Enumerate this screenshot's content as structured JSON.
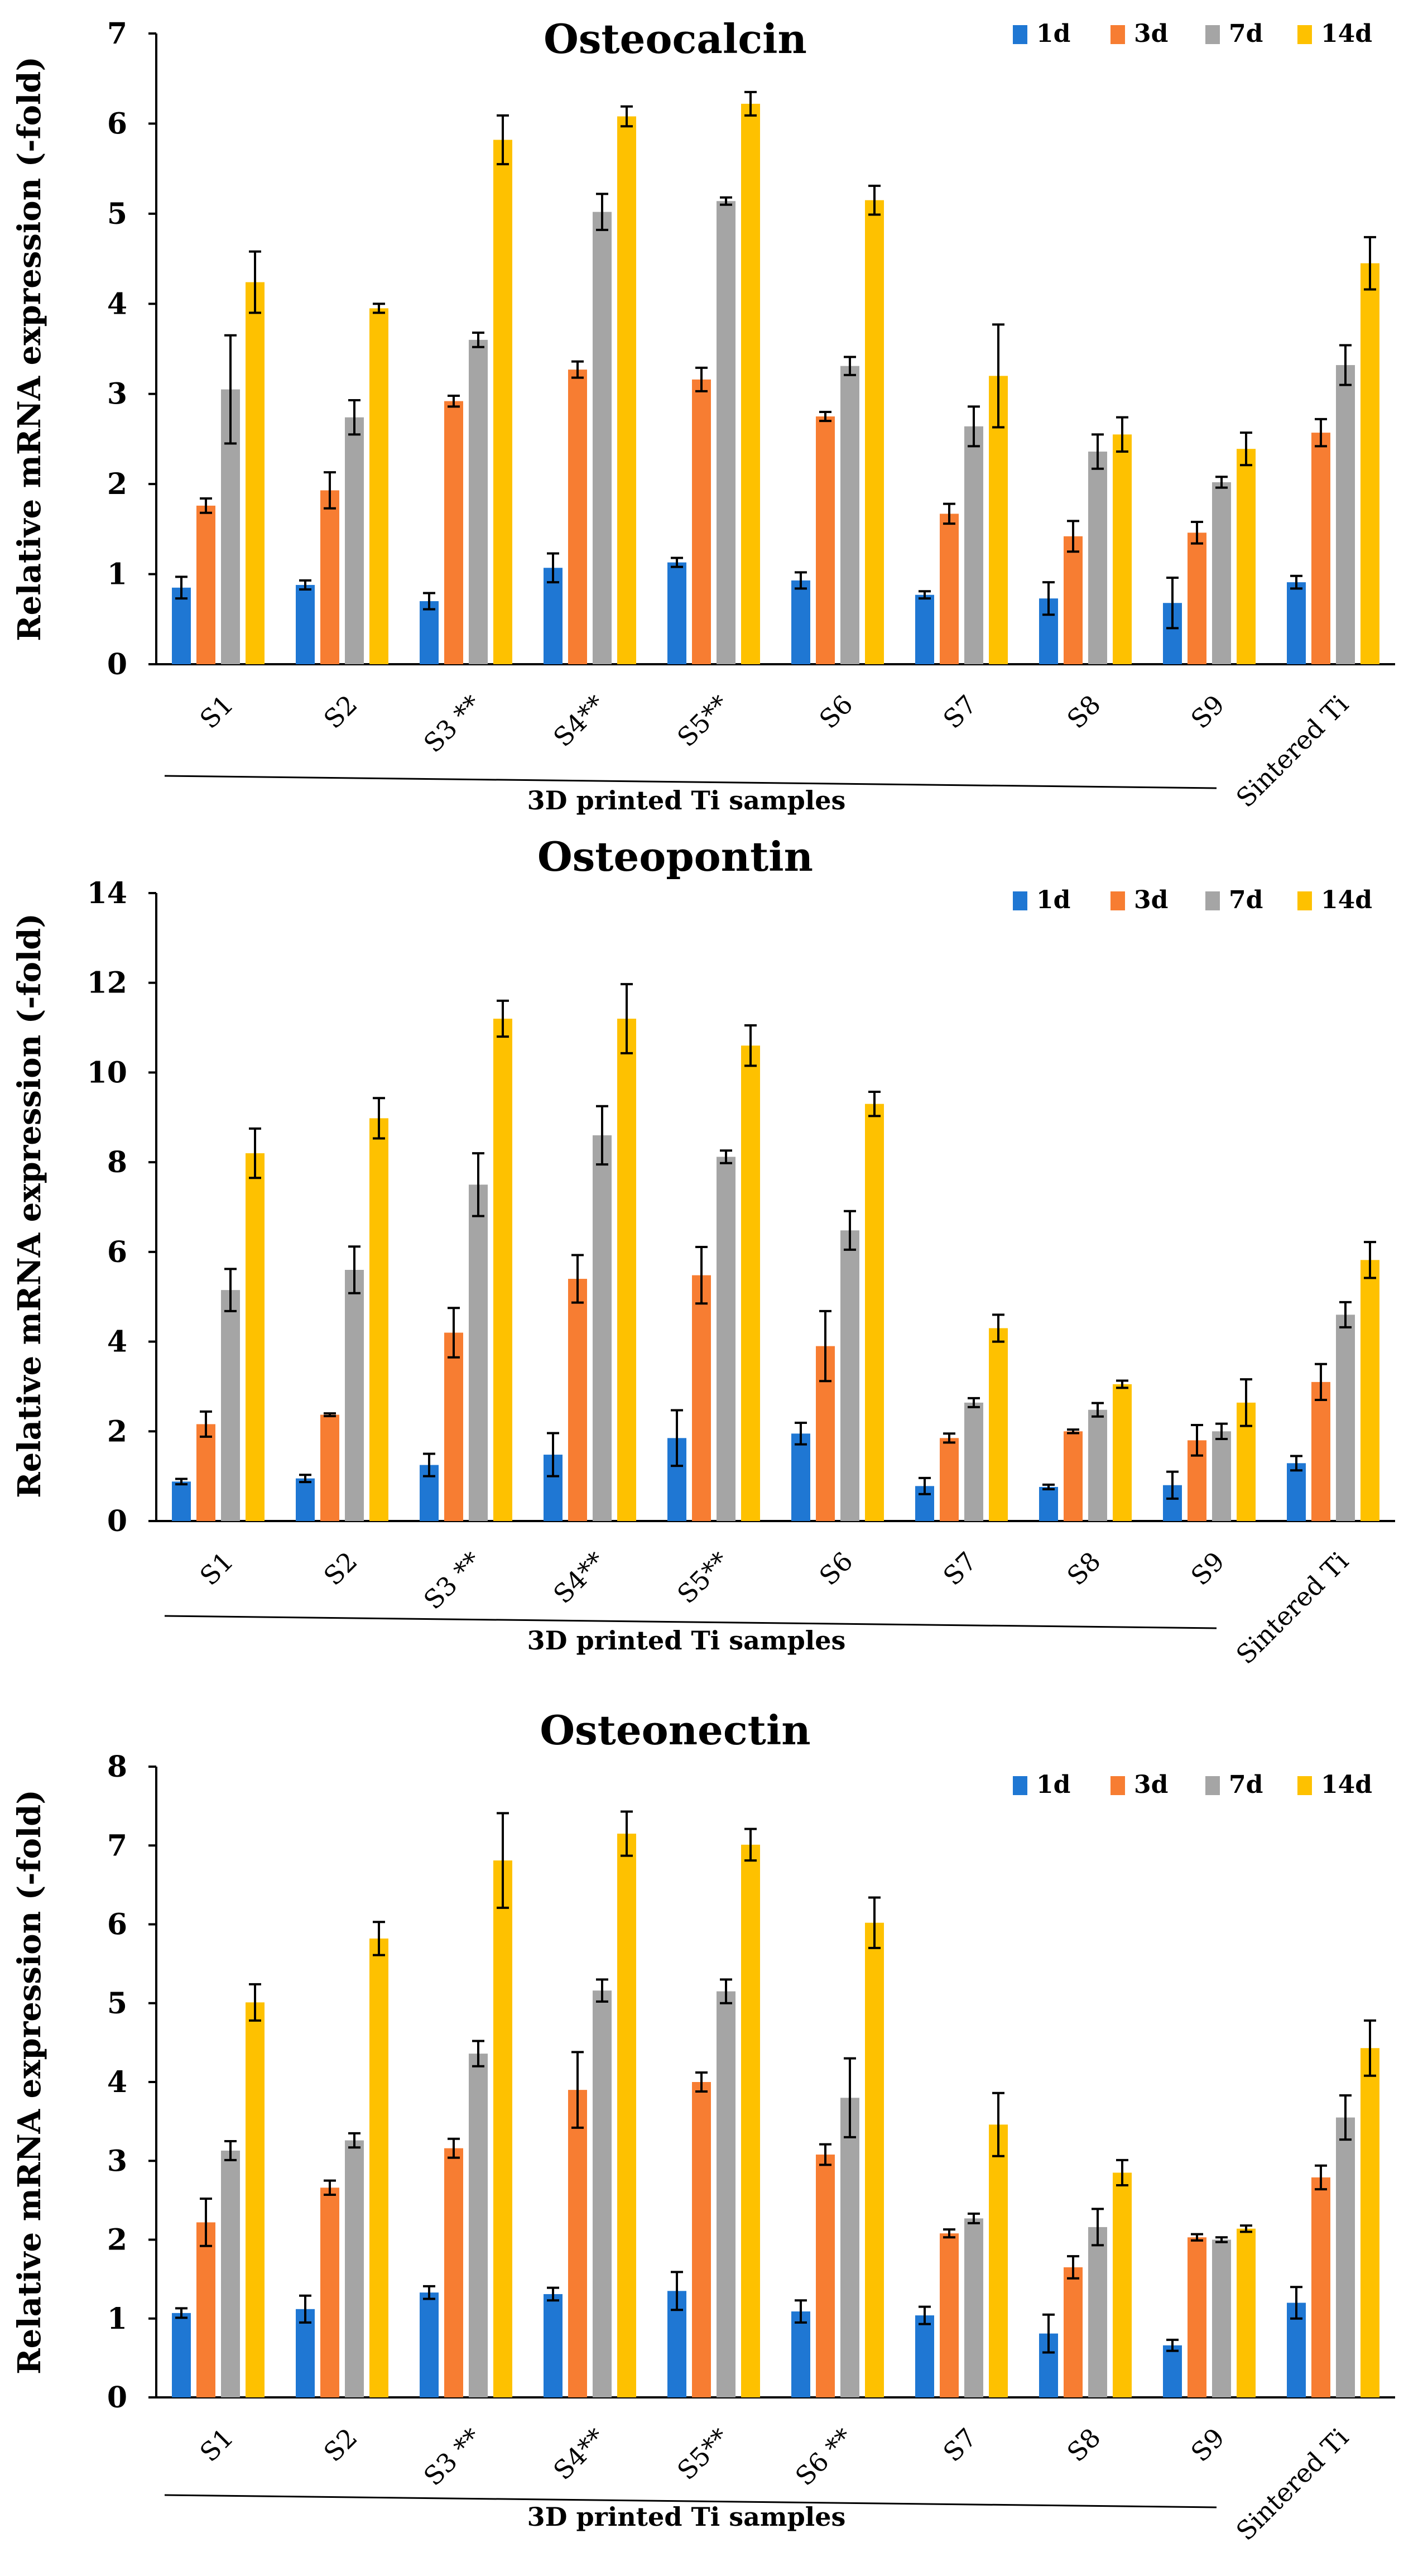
{
  "chart_data": [
    {
      "type": "bar",
      "title": "Osteocalcin",
      "ylabel": "Relative mRNA expression (-fold)",
      "xlabel": "",
      "group_label": "3D printed Ti samples",
      "ylim": [
        0,
        7
      ],
      "yticks": [
        0,
        1,
        2,
        3,
        4,
        5,
        6,
        7
      ],
      "categories": [
        "S1",
        "S2",
        "S3 **",
        "S4**",
        "S5**",
        "S6",
        "S7",
        "S8",
        "S9",
        "Sintered Ti"
      ],
      "legend_position": "top-right",
      "series": [
        {
          "name": "1d",
          "color": "#1f77d3",
          "values": [
            0.85,
            0.88,
            0.7,
            1.07,
            1.13,
            0.93,
            0.77,
            0.73,
            0.68,
            0.91
          ],
          "errors": [
            0.12,
            0.05,
            0.09,
            0.16,
            0.05,
            0.09,
            0.04,
            0.18,
            0.28,
            0.07
          ]
        },
        {
          "name": "3d",
          "color": "#f77d32",
          "values": [
            1.76,
            1.93,
            2.92,
            3.27,
            3.16,
            2.75,
            1.67,
            1.42,
            1.46,
            2.57
          ],
          "errors": [
            0.08,
            0.2,
            0.06,
            0.09,
            0.13,
            0.05,
            0.11,
            0.17,
            0.12,
            0.15
          ]
        },
        {
          "name": "7d",
          "color": "#a5a5a5",
          "values": [
            3.05,
            2.74,
            3.6,
            5.02,
            5.14,
            3.31,
            2.64,
            2.36,
            2.02,
            3.32
          ],
          "errors": [
            0.6,
            0.19,
            0.08,
            0.2,
            0.04,
            0.1,
            0.22,
            0.19,
            0.06,
            0.22
          ]
        },
        {
          "name": "14d",
          "color": "#fec100",
          "values": [
            4.24,
            3.95,
            5.82,
            6.08,
            6.22,
            5.15,
            3.2,
            2.55,
            2.39,
            4.45
          ],
          "errors": [
            0.34,
            0.05,
            0.27,
            0.11,
            0.13,
            0.16,
            0.57,
            0.19,
            0.18,
            0.29
          ]
        }
      ]
    },
    {
      "type": "bar",
      "title": "Osteopontin",
      "ylabel": "Relative mRNA expression (-fold)",
      "xlabel": "",
      "group_label": "3D printed Ti samples",
      "ylim": [
        0,
        14
      ],
      "yticks": [
        0,
        2,
        4,
        6,
        8,
        10,
        12,
        14
      ],
      "categories": [
        "S1",
        "S2",
        "S3 **",
        "S4**",
        "S5**",
        "S6",
        "S7",
        "S8",
        "S9",
        "Sintered Ti"
      ],
      "legend_position": "top-right",
      "series": [
        {
          "name": "1d",
          "color": "#1f77d3",
          "values": [
            0.88,
            0.95,
            1.25,
            1.48,
            1.85,
            1.95,
            0.78,
            0.76,
            0.8,
            1.29
          ],
          "errors": [
            0.06,
            0.08,
            0.25,
            0.48,
            0.62,
            0.24,
            0.18,
            0.05,
            0.3,
            0.16
          ]
        },
        {
          "name": "3d",
          "color": "#f77d32",
          "values": [
            2.16,
            2.37,
            4.2,
            5.4,
            5.48,
            3.9,
            1.85,
            2.0,
            1.8,
            3.1
          ],
          "errors": [
            0.28,
            0.03,
            0.55,
            0.53,
            0.63,
            0.78,
            0.1,
            0.04,
            0.34,
            0.4
          ]
        },
        {
          "name": "7d",
          "color": "#a5a5a5",
          "values": [
            5.15,
            5.6,
            7.5,
            8.6,
            8.12,
            6.48,
            2.64,
            2.48,
            2.0,
            4.6
          ],
          "errors": [
            0.47,
            0.52,
            0.7,
            0.65,
            0.14,
            0.43,
            0.1,
            0.15,
            0.17,
            0.28
          ]
        },
        {
          "name": "14d",
          "color": "#fec100",
          "values": [
            8.2,
            8.98,
            11.2,
            11.2,
            10.6,
            9.3,
            4.3,
            3.05,
            2.64,
            5.82
          ],
          "errors": [
            0.55,
            0.45,
            0.4,
            0.77,
            0.45,
            0.27,
            0.3,
            0.08,
            0.52,
            0.4
          ]
        }
      ]
    },
    {
      "type": "bar",
      "title": "Osteonectin",
      "ylabel": "Relative mRNA expression (-fold)",
      "xlabel": "",
      "group_label": "3D printed Ti samples",
      "ylim": [
        0,
        8
      ],
      "yticks": [
        0,
        1,
        2,
        3,
        4,
        5,
        6,
        7,
        8
      ],
      "categories": [
        "S1",
        "S2",
        "S3 **",
        "S4**",
        "S5**",
        "S6 **",
        "S7",
        "S8",
        "S9",
        "Sintered Ti"
      ],
      "legend_position": "top-right",
      "series": [
        {
          "name": "1d",
          "color": "#1f77d3",
          "values": [
            1.07,
            1.12,
            1.33,
            1.31,
            1.35,
            1.09,
            1.04,
            0.81,
            0.66,
            1.2
          ],
          "errors": [
            0.06,
            0.17,
            0.08,
            0.08,
            0.24,
            0.14,
            0.11,
            0.24,
            0.07,
            0.2
          ]
        },
        {
          "name": "3d",
          "color": "#f77d32",
          "values": [
            2.22,
            2.66,
            3.16,
            3.9,
            4.0,
            3.08,
            2.08,
            1.65,
            2.03,
            2.79
          ],
          "errors": [
            0.3,
            0.09,
            0.12,
            0.48,
            0.12,
            0.13,
            0.05,
            0.14,
            0.04,
            0.15
          ]
        },
        {
          "name": "7d",
          "color": "#a5a5a5",
          "values": [
            3.13,
            3.26,
            4.36,
            5.16,
            5.15,
            3.8,
            2.27,
            2.16,
            2.0,
            3.55
          ],
          "errors": [
            0.12,
            0.09,
            0.16,
            0.14,
            0.15,
            0.5,
            0.06,
            0.23,
            0.03,
            0.28
          ]
        },
        {
          "name": "14d",
          "color": "#fec100",
          "values": [
            5.01,
            5.82,
            6.81,
            7.15,
            7.01,
            6.02,
            3.46,
            2.85,
            2.14,
            4.43
          ],
          "errors": [
            0.23,
            0.21,
            0.6,
            0.28,
            0.2,
            0.32,
            0.4,
            0.16,
            0.04,
            0.35
          ]
        }
      ]
    }
  ]
}
